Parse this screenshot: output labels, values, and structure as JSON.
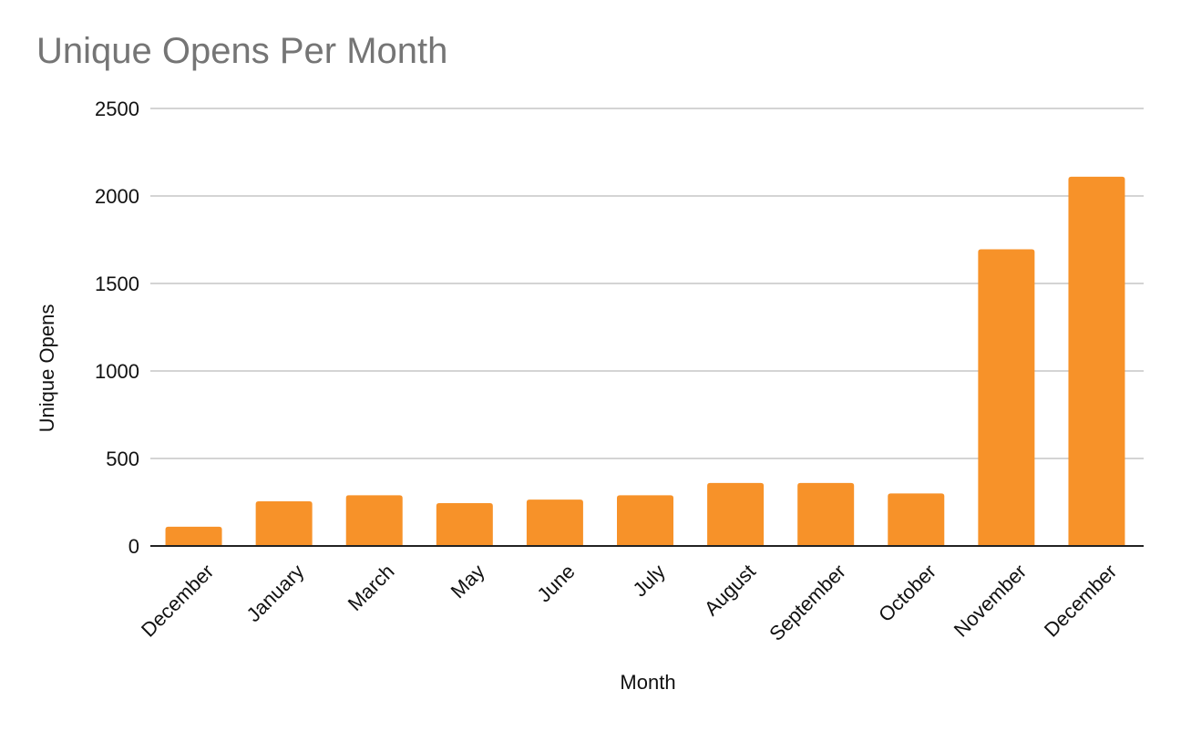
{
  "chart_data": {
    "type": "bar",
    "title": "Unique Opens Per Month",
    "xlabel": "Month",
    "ylabel": "Unique Opens",
    "categories": [
      "December",
      "January",
      "March",
      "May",
      "June",
      "July",
      "August",
      "September",
      "October",
      "November",
      "December"
    ],
    "series": [
      {
        "name": "",
        "color": "#f79229",
        "values": [
          110,
          255,
          290,
          245,
          265,
          290,
          360,
          360,
          300,
          1695,
          2110
        ]
      }
    ],
    "ylim": [
      0,
      2500
    ],
    "yticks": [
      0,
      500,
      1000,
      1500,
      2000,
      2500
    ],
    "grid": true,
    "legend": "none"
  }
}
